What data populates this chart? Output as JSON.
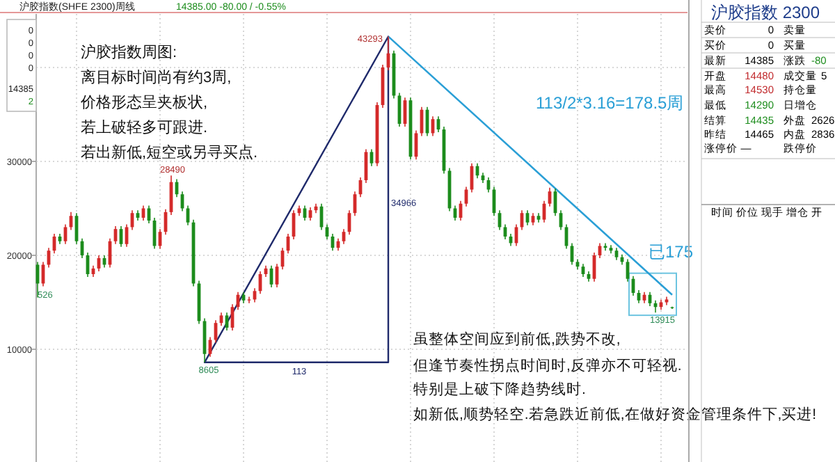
{
  "chart_data": [
    {
      "type": "candlestick",
      "title": "沪胶指数(SHFE 2300)周线",
      "subtitle": "14385.00 -80.00 / -0.55%",
      "categories": [
        null,
        null,
        null,
        null,
        null,
        null,
        null,
        null,
        null,
        null,
        null,
        null,
        null,
        null,
        null,
        null,
        null,
        null,
        null,
        null,
        null,
        null,
        null,
        null,
        null,
        null,
        null,
        null,
        null,
        null,
        null,
        null,
        null,
        null,
        null,
        null,
        null,
        null,
        null,
        null,
        null,
        null,
        null,
        null,
        null,
        null,
        null,
        null,
        null,
        null,
        null,
        null,
        null,
        null,
        null,
        null,
        null,
        null,
        null,
        null,
        null,
        null,
        null,
        null,
        null,
        null,
        null,
        null,
        null,
        null,
        null,
        null,
        null,
        null,
        null,
        null,
        null,
        null,
        null,
        null,
        null,
        null,
        null,
        null,
        null,
        null,
        null,
        null,
        null,
        null,
        null,
        null,
        null,
        null,
        null,
        null,
        null,
        null,
        null,
        null,
        null,
        null,
        null,
        null,
        null,
        null,
        null,
        null,
        null,
        null,
        null,
        null,
        null,
        null,
        null
      ],
      "ylim": [
        -2000,
        45700
      ],
      "yticks": [
        10000,
        20000,
        30000,
        {
          "value": 40000,
          "label": null
        }
      ],
      "grid": true,
      "series": [
        {
          "type": "candlestick",
          "colors": [
            "#1c8c1c",
            "#d42a2a",
            "#d42a2a",
            "#d42a2a",
            "#1c8c1c",
            "#d42a2a",
            "#d42a2a",
            "#1c8c1c",
            "#1c8c1c",
            "#1c8c1c",
            "#d42a2a",
            "#d42a2a",
            "#1c8c1c",
            "#d42a2a",
            "#d42a2a",
            "#1c8c1c",
            "#d42a2a",
            "#d42a2a",
            "#1c8c1c",
            "#d42a2a",
            "#1c8c1c",
            "#1c8c1c",
            "#d42a2a",
            "#d42a2a",
            "#d42a2a",
            "#1c8c1c",
            "#1c8c1c",
            "#1c8c1c",
            "#1c8c1c",
            "#1c8c1c",
            "#1c8c1c",
            "#d42a2a",
            "#d42a2a",
            "#d42a2a",
            "#1c8c1c",
            "#d42a2a",
            "#d42a2a",
            "#1c8c1c",
            "#d42a2a",
            "#d42a2a",
            "#d42a2a",
            "#d42a2a",
            "#1c8c1c",
            "#d42a2a",
            "#d42a2a",
            "#d42a2a",
            "#d42a2a",
            "#d42a2a",
            "#1c8c1c",
            "#d42a2a",
            "#d42a2a",
            "#1c8c1c",
            "#1c8c1c",
            "#1c8c1c",
            "#d42a2a",
            "#d42a2a",
            "#d42a2a",
            "#d42a2a",
            "#d42a2a",
            "#d42a2a",
            "#1c8c1c",
            "#d42a2a",
            "#d42a2a",
            "#d42a2a",
            "#1c8c1c",
            "#1c8c1c",
            "#d42a2a",
            "#1c8c1c",
            "#d42a2a",
            "#d42a2a",
            "#1c8c1c",
            "#d42a2a",
            "#1c8c1c",
            "#1c8c1c",
            "#1c8c1c",
            "#1c8c1c",
            "#d42a2a",
            "#d42a2a",
            "#d42a2a",
            "#1c8c1c",
            "#1c8c1c",
            "#1c8c1c",
            "#1c8c1c",
            "#1c8c1c",
            "#1c8c1c",
            "#1c8c1c",
            "#d42a2a",
            "#d42a2a",
            "#1c8c1c",
            "#d42a2a",
            "#1c8c1c",
            "#d42a2a",
            "#d42a2a",
            "#1c8c1c",
            "#1c8c1c",
            "#1c8c1c",
            "#1c8c1c",
            "#1c8c1c",
            "#1c8c1c",
            "#1c8c1c",
            "#d42a2a",
            "#d42a2a",
            "#1c8c1c",
            "#1c8c1c",
            "#1c8c1c",
            "#1c8c1c",
            "#1c8c1c",
            "#1c8c1c",
            "#1c8c1c",
            "#d42a2a",
            "#1c8c1c",
            "#1c8c1c",
            "#d42a2a",
            "#d42a2a",
            "#1c8c1c"
          ],
          "ohlc": [
            [
              19000,
              19300,
              15526,
              17000
            ],
            [
              17000,
              19300,
              16700,
              19000
            ],
            [
              19000,
              20800,
              18700,
              20500
            ],
            [
              20500,
              22300,
              20200,
              22000
            ],
            [
              22000,
              22300,
              21200,
              21500
            ],
            [
              21500,
              23300,
              21200,
              23000
            ],
            [
              23000,
              24600,
              22700,
              24200
            ],
            [
              24200,
              24500,
              21200,
              21500
            ],
            [
              21500,
              21800,
              19700,
              20000
            ],
            [
              20000,
              20300,
              17700,
              18000
            ],
            [
              18000,
              18900,
              17700,
              18600
            ],
            [
              18600,
              20000,
              18300,
              19700
            ],
            [
              19700,
              20000,
              18700,
              19000
            ],
            [
              19000,
              21800,
              18700,
              21500
            ],
            [
              21500,
              23100,
              21200,
              22800
            ],
            [
              22800,
              23100,
              20900,
              21200
            ],
            [
              21200,
              23300,
              20900,
              23000
            ],
            [
              23000,
              24800,
              22700,
              24500
            ],
            [
              24500,
              24800,
              23700,
              24000
            ],
            [
              24000,
              25300,
              23700,
              25000
            ],
            [
              25000,
              25300,
              23400,
              23700
            ],
            [
              23700,
              24000,
              20700,
              21000
            ],
            [
              21000,
              22800,
              20700,
              22500
            ],
            [
              22500,
              24900,
              22200,
              24600
            ],
            [
              24600,
              28490,
              24300,
              27800
            ],
            [
              27800,
              28100,
              26200,
              26500
            ],
            [
              26500,
              26800,
              24700,
              25000
            ],
            [
              25000,
              25300,
              23200,
              23500
            ],
            [
              23500,
              23800,
              16700,
              17000
            ],
            [
              17000,
              17300,
              12700,
              13000
            ],
            [
              13000,
              13300,
              8605,
              9500
            ],
            [
              9500,
              11300,
              9200,
              11000
            ],
            [
              11000,
              13100,
              10700,
              12800
            ],
            [
              12800,
              13900,
              12500,
              13600
            ],
            [
              13600,
              13900,
              12000,
              12300
            ],
            [
              12300,
              14800,
              12000,
              14500
            ],
            [
              14500,
              16100,
              14200,
              15800
            ],
            [
              15800,
              16100,
              14900,
              15200
            ],
            [
              15200,
              15600,
              14900,
              15300
            ],
            [
              15300,
              16500,
              15000,
              16200
            ],
            [
              16200,
              18300,
              15900,
              18000
            ],
            [
              18000,
              18900,
              17700,
              18600
            ],
            [
              18600,
              18900,
              16600,
              16900
            ],
            [
              16900,
              19100,
              16600,
              18800
            ],
            [
              18800,
              20800,
              18500,
              20500
            ],
            [
              20500,
              22300,
              20200,
              22000
            ],
            [
              22000,
              24800,
              21700,
              24500
            ],
            [
              24500,
              25300,
              24200,
              25000
            ],
            [
              25000,
              25300,
              23700,
              24000
            ],
            [
              24000,
              25100,
              23700,
              24800
            ],
            [
              24800,
              25500,
              24500,
              25200
            ],
            [
              25200,
              25500,
              22700,
              23000
            ],
            [
              23000,
              23300,
              21700,
              22000
            ],
            [
              22000,
              22300,
              20500,
              20800
            ],
            [
              20800,
              21800,
              20500,
              21500
            ],
            [
              21500,
              22800,
              21200,
              22500
            ],
            [
              22500,
              24800,
              22200,
              24500
            ],
            [
              24500,
              26800,
              24200,
              26500
            ],
            [
              26500,
              28300,
              26200,
              28000
            ],
            [
              28000,
              31300,
              27700,
              31000
            ],
            [
              31000,
              31300,
              29500,
              29800
            ],
            [
              29800,
              36300,
              29500,
              36000
            ],
            [
              36000,
              40300,
              35700,
              40000
            ],
            [
              40000,
              43293,
              39700,
              41500
            ],
            [
              41500,
              41800,
              36700,
              37000
            ],
            [
              37000,
              37300,
              33700,
              34000
            ],
            [
              34000,
              36800,
              33700,
              36500
            ],
            [
              36500,
              36800,
              30200,
              30500
            ],
            [
              30500,
              33300,
              30200,
              33000
            ],
            [
              33000,
              35800,
              32700,
              35500
            ],
            [
              35500,
              35800,
              32700,
              33000
            ],
            [
              33000,
              34800,
              32700,
              34500
            ],
            [
              34500,
              34800,
              33100,
              33400
            ],
            [
              33400,
              33700,
              28700,
              29000
            ],
            [
              29000,
              29300,
              24700,
              25000
            ],
            [
              25000,
              25300,
              23700,
              24000
            ],
            [
              24000,
              25800,
              23700,
              25500
            ],
            [
              25500,
              27300,
              25200,
              27000
            ],
            [
              27000,
              29800,
              26700,
              29500
            ],
            [
              29500,
              29800,
              28200,
              28500
            ],
            [
              28500,
              28800,
              27700,
              28000
            ],
            [
              28000,
              28300,
              26700,
              27000
            ],
            [
              27000,
              27300,
              24200,
              24500
            ],
            [
              24500,
              24800,
              22700,
              23000
            ],
            [
              23000,
              23300,
              21700,
              22000
            ],
            [
              22000,
              22300,
              21000,
              21300
            ],
            [
              21300,
              23300,
              21000,
              23000
            ],
            [
              23000,
              24800,
              22700,
              24500
            ],
            [
              24500,
              24800,
              23200,
              23500
            ],
            [
              23500,
              24500,
              23200,
              24200
            ],
            [
              24200,
              24500,
              23500,
              23800
            ],
            [
              23800,
              25800,
              23500,
              25500
            ],
            [
              25500,
              27200,
              25200,
              26800
            ],
            [
              26800,
              27100,
              24200,
              24500
            ],
            [
              24500,
              24800,
              22700,
              23000
            ],
            [
              23000,
              23300,
              20700,
              21000
            ],
            [
              21000,
              21300,
              19000,
              19300
            ],
            [
              19300,
              19600,
              18500,
              18800
            ],
            [
              18800,
              19100,
              17700,
              18000
            ],
            [
              18000,
              18300,
              17200,
              17500
            ],
            [
              17500,
              20300,
              17200,
              20000
            ],
            [
              20000,
              21300,
              19700,
              21000
            ],
            [
              21000,
              21300,
              20500,
              20800
            ],
            [
              20800,
              21100,
              20200,
              20500
            ],
            [
              20500,
              20800,
              19500,
              19800
            ],
            [
              19800,
              20100,
              19000,
              19300
            ],
            [
              19300,
              19600,
              17200,
              17500
            ],
            [
              17500,
              17800,
              15700,
              16000
            ],
            [
              16000,
              16300,
              14900,
              15200
            ],
            [
              15200,
              16100,
              14900,
              15800
            ],
            [
              15800,
              16100,
              14600,
              14900
            ],
            [
              14900,
              15200,
              13915,
              14500
            ],
            [
              14500,
              15300,
              14200,
              15000
            ],
            [
              15000,
              15600,
              14700,
              15300
            ],
            [
              14480,
              14530,
              14290,
              14385
            ]
          ]
        },
        {
          "type": "line",
          "color": "#2a9fd6",
          "values": [
            null,
            null,
            null,
            null,
            null,
            null,
            null,
            null,
            null,
            null,
            null,
            null,
            null,
            null,
            null,
            null,
            null,
            null,
            null,
            null,
            null,
            null,
            null,
            null,
            null,
            null,
            null,
            null,
            null,
            null,
            null,
            null,
            null,
            null,
            null,
            null,
            null,
            null,
            null,
            null,
            null,
            null,
            null,
            null,
            null,
            null,
            null,
            null,
            null,
            null,
            null,
            null,
            null,
            null,
            null,
            null,
            null,
            null,
            null,
            null,
            null,
            null,
            null,
            43300,
            null,
            null,
            null,
            null,
            null,
            null,
            null,
            null,
            null,
            null,
            null,
            null,
            null,
            null,
            null,
            null,
            null,
            null,
            null,
            null,
            null,
            null,
            null,
            null,
            null,
            null,
            null,
            null,
            null,
            null,
            null,
            null,
            null,
            null,
            null,
            null,
            null,
            null,
            null,
            null,
            null,
            null,
            null,
            null,
            null,
            null,
            null,
            null,
            null,
            null,
            15800
          ]
        }
      ],
      "annotations": [
        "43293",
        "28490",
        "8605",
        "13915",
        "526",
        "沪胶指数周图:",
        "离目标时间尚有约3周,",
        "价格形态呈夹板状,",
        "若上破轻多可跟进.",
        "若出新低,短空或另寻买点.",
        "虽整体空间应到前低,跌势不改,",
        "但逢节奏性拐点时间时,反弹亦不可轻视.",
        "特别是上破下降趋势线时.",
        "如新低,顺势轻空.若急跌近前低,在做好资金管理条件下,买进!",
        "113/2*3.16=178.5周",
        "已175",
        "113",
        "34966"
      ]
    },
    {
      "type": "other",
      "title": "沪胶指数 2300",
      "annotations": [
        "卖价",
        "0",
        "卖量",
        "买价",
        "0",
        "买量",
        "最新",
        "14385",
        "涨跌",
        "-80",
        "开盘",
        "14480",
        "成交量",
        "5",
        "最高",
        "14530",
        "持仓量",
        "最低",
        "14290",
        "日增仓",
        "结算",
        "14435",
        "外盘",
        "2626",
        "昨结",
        "14465",
        "内盘",
        "2836",
        "涨停价",
        "—",
        "跌停价",
        "时间",
        "价位",
        "现手",
        "增仓",
        "开"
      ],
      "colors": [
        "#000000",
        "#000000",
        "#000000",
        "#000000",
        "#000000",
        "#000000",
        "#000000",
        "#000000",
        "#000000",
        "#1c8c1c",
        "#000000",
        "#c0282b",
        "#000000",
        "#000000",
        "#000000",
        "#c0282b",
        "#000000",
        "#000000",
        "#1c8c1c",
        "#000000",
        "#000000",
        "#1c8c1c",
        "#000000",
        "#000000",
        "#000000",
        "#000000",
        "#000000",
        "#000000",
        "#000000",
        "#000000",
        "#000000",
        "#000000",
        "#000000",
        "#000000",
        "#000000",
        "#000000"
      ]
    },
    {
      "type": "other",
      "annotations": [
        "0",
        "0",
        "0",
        "0",
        "14385",
        "2"
      ],
      "colors": [
        "#222222",
        "#222222",
        "#222222",
        "#222222",
        "#222222",
        "#1c8c1c"
      ]
    }
  ]
}
